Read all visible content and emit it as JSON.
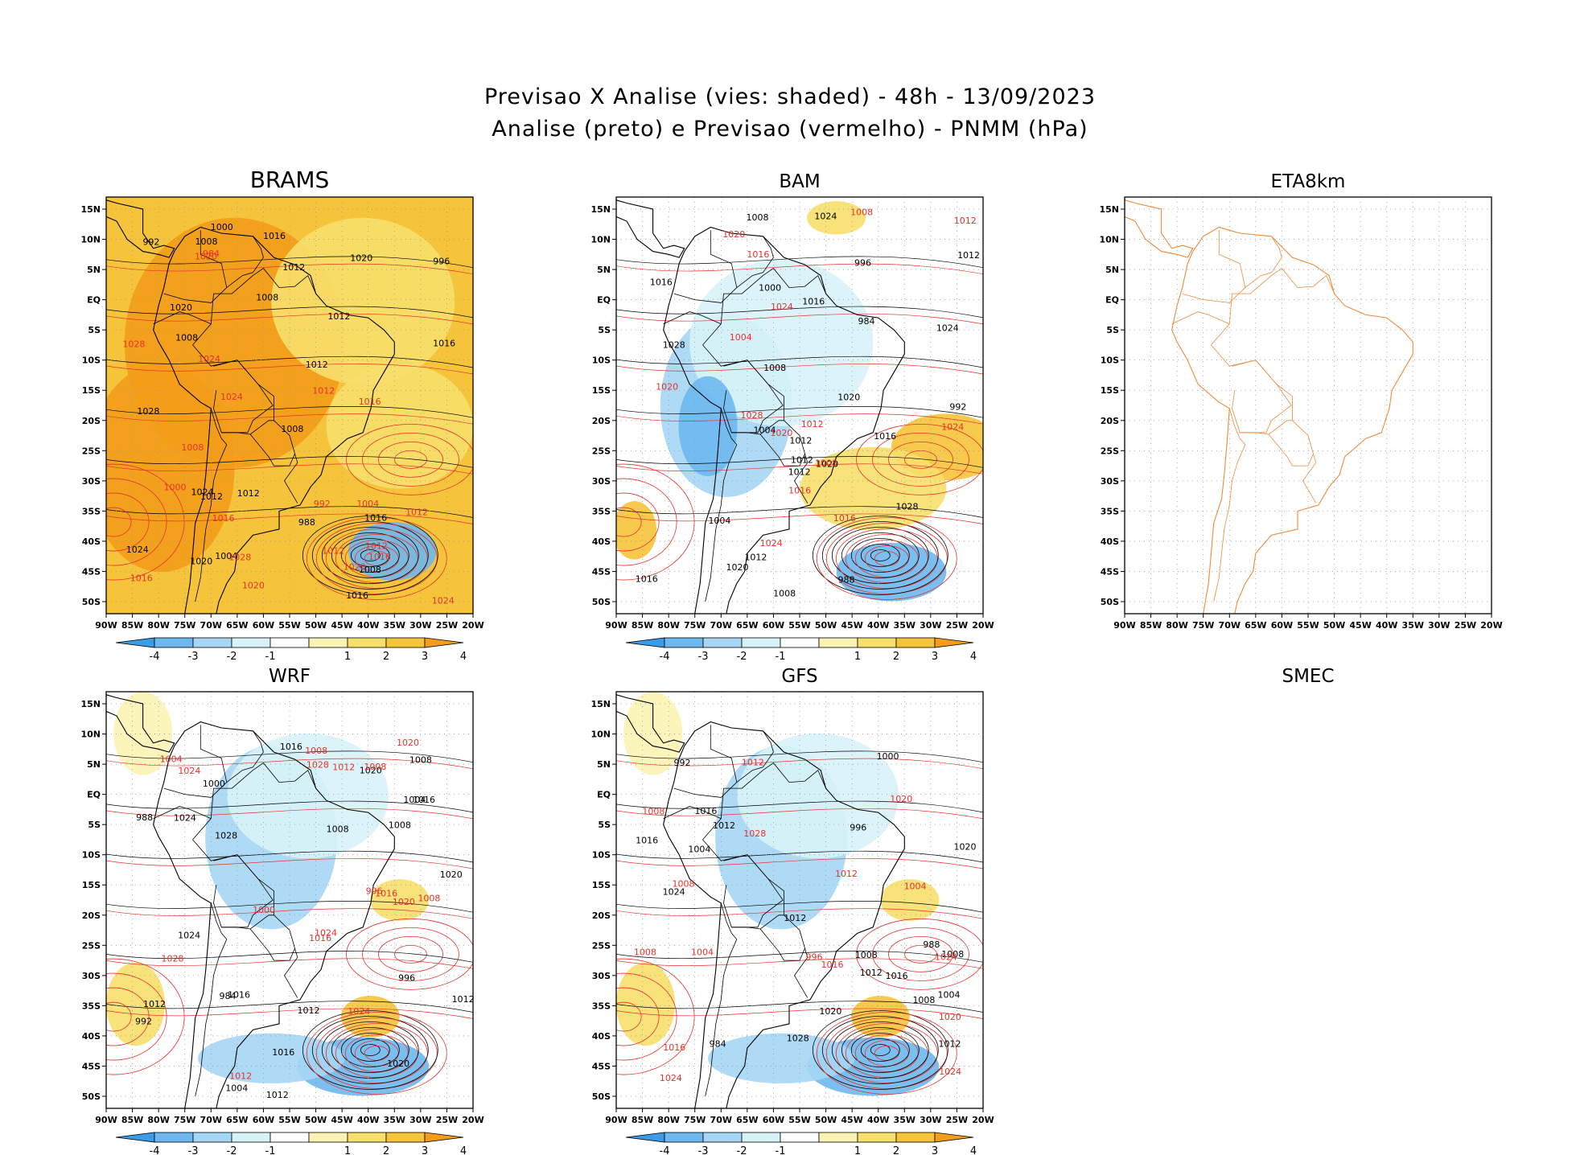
{
  "title_line1": "Previsao X Analise (vies: shaded) - 48h - 13/09/2023",
  "title_line2": "Analise (preto) e Previsao (vermelho) - PNMM (hPa)",
  "colors": {
    "analysis_contour": "#000000",
    "forecast_contour": "#e8322b",
    "map_outline_eta": "#f08a3a",
    "bias_neg4": "#3a9be6",
    "bias_neg3": "#6db8ef",
    "bias_neg2": "#a6d6f5",
    "bias_neg1": "#d8f3f8",
    "bias_pos1": "#fbf3b4",
    "bias_pos2": "#f7df6c",
    "bias_pos3": "#f6c43a",
    "bias_pos4": "#f39c19"
  },
  "chart_data": {
    "type": "map-panels",
    "lat_ticks": [
      "15N",
      "10N",
      "5N",
      "EQ",
      "5S",
      "10S",
      "15S",
      "20S",
      "25S",
      "30S",
      "35S",
      "40S",
      "45S",
      "50S"
    ],
    "lon_ticks": [
      "90W",
      "85W",
      "80W",
      "75W",
      "70W",
      "65W",
      "60W",
      "55W",
      "50W",
      "45W",
      "40W",
      "35W",
      "30W",
      "25W",
      "20W"
    ],
    "xlim_lon": [
      -90,
      -20
    ],
    "ylim_lat": [
      -52,
      17
    ],
    "colorbar_ticks": [
      "-4",
      "-3",
      "-2",
      "-1",
      "1",
      "2",
      "3",
      "4"
    ],
    "panels": [
      {
        "name": "BRAMS",
        "has_data": true,
        "dominant_bias": "positive",
        "labels_black": [
          "1008",
          "1008",
          "1012",
          "1012",
          "1008",
          "1012",
          "1016",
          "1020",
          "1016",
          "1024",
          "1020",
          "1028",
          "1024",
          "1016",
          "1012",
          "1008",
          "1004",
          "1000",
          "996",
          "992",
          "988",
          "1008",
          "1012",
          "1016",
          "1020"
        ],
        "labels_red": [
          "1016",
          "1016",
          "1012",
          "1020",
          "1024",
          "1028",
          "1020",
          "1016",
          "1012",
          "1008",
          "1004",
          "1000",
          "992",
          "984",
          "1012",
          "1016",
          "1020",
          "1024",
          "1028",
          "1024",
          "1012"
        ]
      },
      {
        "name": "BAM",
        "has_data": true,
        "dominant_bias": "mixed",
        "labels_black": [
          "1012",
          "1012",
          "1008",
          "1012",
          "1016",
          "1020",
          "1024",
          "1028",
          "1024",
          "1020",
          "1016",
          "1012",
          "1008",
          "1004",
          "1000",
          "996",
          "992",
          "988",
          "984",
          "1020",
          "1016",
          "1028",
          "1004",
          "1008",
          "1012",
          "1016"
        ],
        "labels_red": [
          "1016",
          "1008",
          "1012",
          "1016",
          "1020",
          "1024",
          "1028",
          "1024",
          "1020",
          "1012",
          "1008",
          "1004",
          "1016",
          "1020",
          "1024"
        ]
      },
      {
        "name": "ETA8km",
        "has_data": false
      },
      {
        "name": "WRF",
        "has_data": true,
        "dominant_bias": "negative",
        "labels_black": [
          "1008",
          "1012",
          "1012",
          "1016",
          "1020",
          "1024",
          "1028",
          "1016",
          "1020",
          "1012",
          "1008",
          "1004",
          "1000",
          "996",
          "992",
          "988",
          "984",
          "1016",
          "1024",
          "1012",
          "1016",
          "1020",
          "1008",
          "1004"
        ],
        "labels_red": [
          "1008",
          "1012",
          "1016",
          "1020",
          "1024",
          "1028",
          "1024",
          "1020",
          "1016",
          "1012",
          "1008",
          "1004",
          "1000",
          "996",
          "1008",
          "1028",
          "1024"
        ]
      },
      {
        "name": "GFS",
        "has_data": true,
        "dominant_bias": "negative",
        "labels_black": [
          "1012",
          "1012",
          "1008",
          "1016",
          "1020",
          "1024",
          "1028",
          "1016",
          "1012",
          "1008",
          "1004",
          "1000",
          "996",
          "992",
          "988",
          "984",
          "1020",
          "1008",
          "1004",
          "1016",
          "1012"
        ],
        "labels_red": [
          "1008",
          "1012",
          "1016",
          "1020",
          "1024",
          "1028",
          "1024",
          "1020",
          "1016",
          "1012",
          "1008",
          "1004",
          "996",
          "1008",
          "1024",
          "1004"
        ]
      },
      {
        "name": "SMEC",
        "has_data": false
      }
    ]
  }
}
